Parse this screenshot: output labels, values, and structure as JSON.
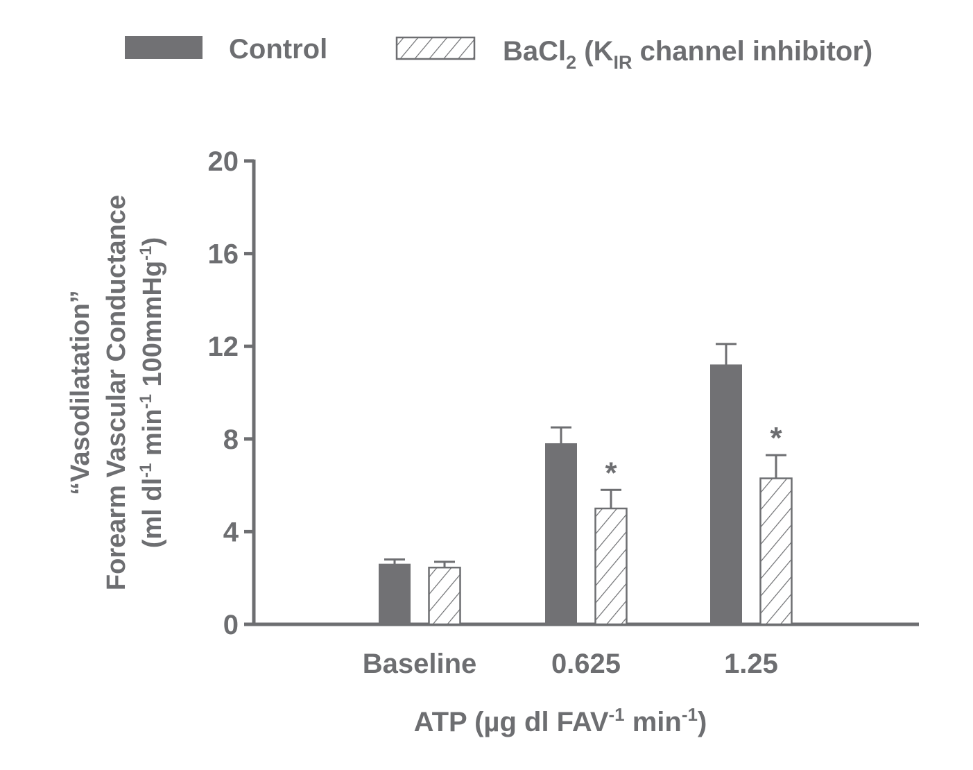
{
  "chart_data": {
    "type": "bar",
    "categories": [
      "Baseline",
      "0.625",
      "1.25"
    ],
    "series": [
      {
        "name": "Control",
        "values": [
          2.6,
          7.8,
          11.2
        ],
        "errors": [
          0.2,
          0.7,
          0.9
        ],
        "significant": [
          false,
          false,
          false
        ]
      },
      {
        "name": "BaCl2 (KIR channel inhibitor)",
        "values": [
          2.45,
          5.0,
          6.3
        ],
        "errors": [
          0.25,
          0.8,
          1.0
        ],
        "significant": [
          false,
          true,
          true
        ]
      }
    ],
    "ylim": [
      0,
      20
    ],
    "yticks": [
      0,
      4,
      8,
      12,
      16,
      20
    ],
    "xlabel": {
      "base": "ATP (µg dl FAV",
      "sup1": "-1",
      "mid": " min",
      "sup2": "-1",
      "end": ")"
    },
    "ylabel": {
      "line1": "“Vasodilatation”",
      "line2": "Forearm Vascular Conductance",
      "line3_a": "(ml dl",
      "line3_sup1": "-1",
      "line3_b": " min",
      "line3_sup2": "-1",
      "line3_c": " 100mmHg",
      "line3_sup3": "-1",
      "line3_d": ")"
    },
    "legend": {
      "control": "Control",
      "bacl2_a": "BaCl",
      "bacl2_sub": "2",
      "bacl2_b": " (K",
      "bacl2_sub2": "IR",
      "bacl2_c": " channel inhibitor)"
    },
    "significance_marker": "*",
    "colors": {
      "control": "#717174",
      "axis": "#6d6e71",
      "hatch": "#6d6e71"
    }
  }
}
